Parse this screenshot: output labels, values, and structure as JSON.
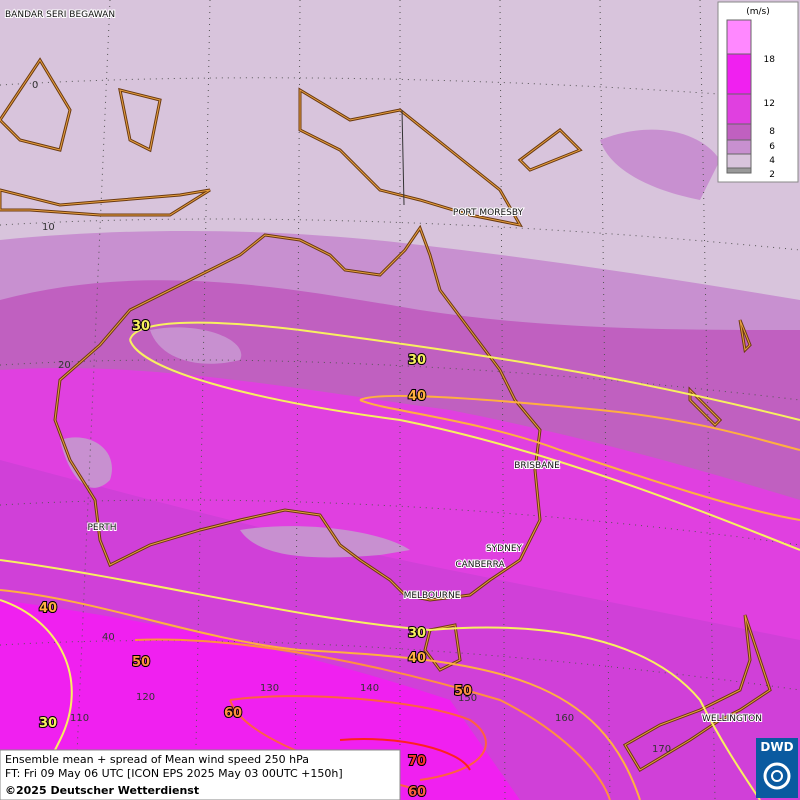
{
  "map": {
    "cities": [
      "BANDAR SERI BEGAWAN",
      "PORT MORESBY",
      "BRISBANE",
      "PERTH",
      "SYDNEY",
      "CANBERRA",
      "MELBOURNE",
      "WELLINGTON"
    ],
    "latitude_labels": [
      0,
      10,
      20,
      40
    ],
    "longitude_labels": [
      110,
      120,
      130,
      140,
      150,
      160,
      170
    ],
    "contour_labels": [
      30,
      30,
      40,
      40,
      30,
      40,
      50,
      60,
      70,
      60,
      30,
      50
    ],
    "legend": {
      "unit": "(m/s)",
      "ticks": [
        18,
        12,
        8,
        6,
        4,
        2
      ]
    },
    "footer": [
      "Ensemble mean + spread of Mean wind speed 250 hPa",
      "FT: Fri 09 May 06 UTC [ICON EPS 2025 May 03 00UTC +150h]",
      "©2025 Deutscher Wetterdienst"
    ],
    "logo": "DWD"
  }
}
